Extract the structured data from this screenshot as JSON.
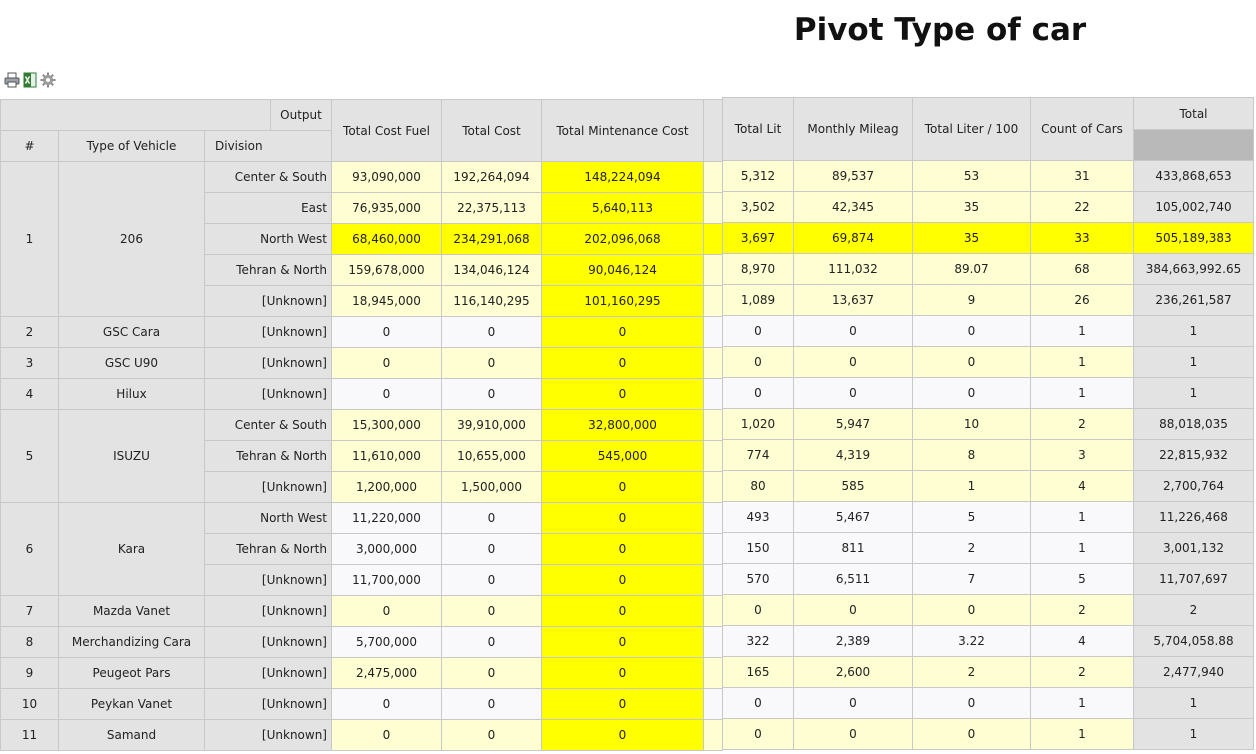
{
  "page": {
    "title": "Pivot Type of car"
  },
  "toolbar": {
    "icons": [
      "printer-icon",
      "excel-export-icon",
      "settings-gear-icon"
    ]
  },
  "left_header": {
    "output_label": "Output",
    "hash": "#",
    "type_of_vehicle": "Type of Vehicle",
    "division": "Division",
    "total_cost_fuel": "Total Cost Fuel",
    "total_cost": "Total Cost",
    "total_mintenance_cost": "Total Mintenance Cost"
  },
  "right_header": {
    "total_lit": "Total Lit",
    "monthly_mileag": "Monthly Mileag",
    "total_liter_100": "Total Liter / 100",
    "count_of_cars": "Count of Cars",
    "total": "Total"
  },
  "colors": {
    "highlight": "#ffff00",
    "light_row": "#fefed2",
    "header": "#e3e3e3"
  },
  "groups": [
    {
      "num": "1",
      "vehicle": "206",
      "rows": [
        {
          "division": "Center & South",
          "fuel": "93,090,000",
          "cost": "192,264,094",
          "maint": "148,224,094",
          "lit": "5,312",
          "mileag": "89,537",
          "l100": "53",
          "count": "31",
          "total": "433,868,653",
          "highlight": false
        },
        {
          "division": "East",
          "fuel": "76,935,000",
          "cost": "22,375,113",
          "maint": "5,640,113",
          "lit": "3,502",
          "mileag": "42,345",
          "l100": "35",
          "count": "22",
          "total": "105,002,740",
          "highlight": false
        },
        {
          "division": "North West",
          "fuel": "68,460,000",
          "cost": "234,291,068",
          "maint": "202,096,068",
          "lit": "3,697",
          "mileag": "69,874",
          "l100": "35",
          "count": "33",
          "total": "505,189,383",
          "highlight": true
        },
        {
          "division": "Tehran & North",
          "fuel": "159,678,000",
          "cost": "134,046,124",
          "maint": "90,046,124",
          "lit": "8,970",
          "mileag": "111,032",
          "l100": "89.07",
          "count": "68",
          "total": "384,663,992.65",
          "highlight": false
        },
        {
          "division": "[Unknown]",
          "fuel": "18,945,000",
          "cost": "116,140,295",
          "maint": "101,160,295",
          "lit": "1,089",
          "mileag": "13,637",
          "l100": "9",
          "count": "26",
          "total": "236,261,587",
          "highlight": false
        }
      ]
    },
    {
      "num": "2",
      "vehicle": "GSC Cara",
      "rows": [
        {
          "division": "[Unknown]",
          "fuel": "0",
          "cost": "0",
          "maint": "0",
          "lit": "0",
          "mileag": "0",
          "l100": "0",
          "count": "1",
          "total": "1",
          "highlight": false
        }
      ]
    },
    {
      "num": "3",
      "vehicle": "GSC U90",
      "rows": [
        {
          "division": "[Unknown]",
          "fuel": "0",
          "cost": "0",
          "maint": "0",
          "lit": "0",
          "mileag": "0",
          "l100": "0",
          "count": "1",
          "total": "1",
          "highlight": false
        }
      ]
    },
    {
      "num": "4",
      "vehicle": "Hilux",
      "rows": [
        {
          "division": "[Unknown]",
          "fuel": "0",
          "cost": "0",
          "maint": "0",
          "lit": "0",
          "mileag": "0",
          "l100": "0",
          "count": "1",
          "total": "1",
          "highlight": false
        }
      ]
    },
    {
      "num": "5",
      "vehicle": "ISUZU",
      "rows": [
        {
          "division": "Center & South",
          "fuel": "15,300,000",
          "cost": "39,910,000",
          "maint": "32,800,000",
          "lit": "1,020",
          "mileag": "5,947",
          "l100": "10",
          "count": "2",
          "total": "88,018,035",
          "highlight": false
        },
        {
          "division": "Tehran & North",
          "fuel": "11,610,000",
          "cost": "10,655,000",
          "maint": "545,000",
          "lit": "774",
          "mileag": "4,319",
          "l100": "8",
          "count": "3",
          "total": "22,815,932",
          "highlight": false
        },
        {
          "division": "[Unknown]",
          "fuel": "1,200,000",
          "cost": "1,500,000",
          "maint": "0",
          "lit": "80",
          "mileag": "585",
          "l100": "1",
          "count": "4",
          "total": "2,700,764",
          "highlight": false
        }
      ]
    },
    {
      "num": "6",
      "vehicle": "Kara",
      "rows": [
        {
          "division": "North West",
          "fuel": "11,220,000",
          "cost": "0",
          "maint": "0",
          "lit": "493",
          "mileag": "5,467",
          "l100": "5",
          "count": "1",
          "total": "11,226,468",
          "highlight": false
        },
        {
          "division": "Tehran & North",
          "fuel": "3,000,000",
          "cost": "0",
          "maint": "0",
          "lit": "150",
          "mileag": "811",
          "l100": "2",
          "count": "1",
          "total": "3,001,132",
          "highlight": false
        },
        {
          "division": "[Unknown]",
          "fuel": "11,700,000",
          "cost": "0",
          "maint": "0",
          "lit": "570",
          "mileag": "6,511",
          "l100": "7",
          "count": "5",
          "total": "11,707,697",
          "highlight": false
        }
      ]
    },
    {
      "num": "7",
      "vehicle": "Mazda Vanet",
      "rows": [
        {
          "division": "[Unknown]",
          "fuel": "0",
          "cost": "0",
          "maint": "0",
          "lit": "0",
          "mileag": "0",
          "l100": "0",
          "count": "2",
          "total": "2",
          "highlight": false
        }
      ]
    },
    {
      "num": "8",
      "vehicle": "Merchandizing Cara",
      "rows": [
        {
          "division": "[Unknown]",
          "fuel": "5,700,000",
          "cost": "0",
          "maint": "0",
          "lit": "322",
          "mileag": "2,389",
          "l100": "3.22",
          "count": "4",
          "total": "5,704,058.88",
          "highlight": false
        }
      ]
    },
    {
      "num": "9",
      "vehicle": "Peugeot Pars",
      "rows": [
        {
          "division": "[Unknown]",
          "fuel": "2,475,000",
          "cost": "0",
          "maint": "0",
          "lit": "165",
          "mileag": "2,600",
          "l100": "2",
          "count": "2",
          "total": "2,477,940",
          "highlight": false
        }
      ]
    },
    {
      "num": "10",
      "vehicle": "Peykan Vanet",
      "rows": [
        {
          "division": "[Unknown]",
          "fuel": "0",
          "cost": "0",
          "maint": "0",
          "lit": "0",
          "mileag": "0",
          "l100": "0",
          "count": "1",
          "total": "1",
          "highlight": false
        }
      ]
    },
    {
      "num": "11",
      "vehicle": "Samand",
      "rows": [
        {
          "division": "[Unknown]",
          "fuel": "0",
          "cost": "0",
          "maint": "0",
          "lit": "0",
          "mileag": "0",
          "l100": "0",
          "count": "1",
          "total": "1",
          "highlight": false
        }
      ]
    }
  ]
}
